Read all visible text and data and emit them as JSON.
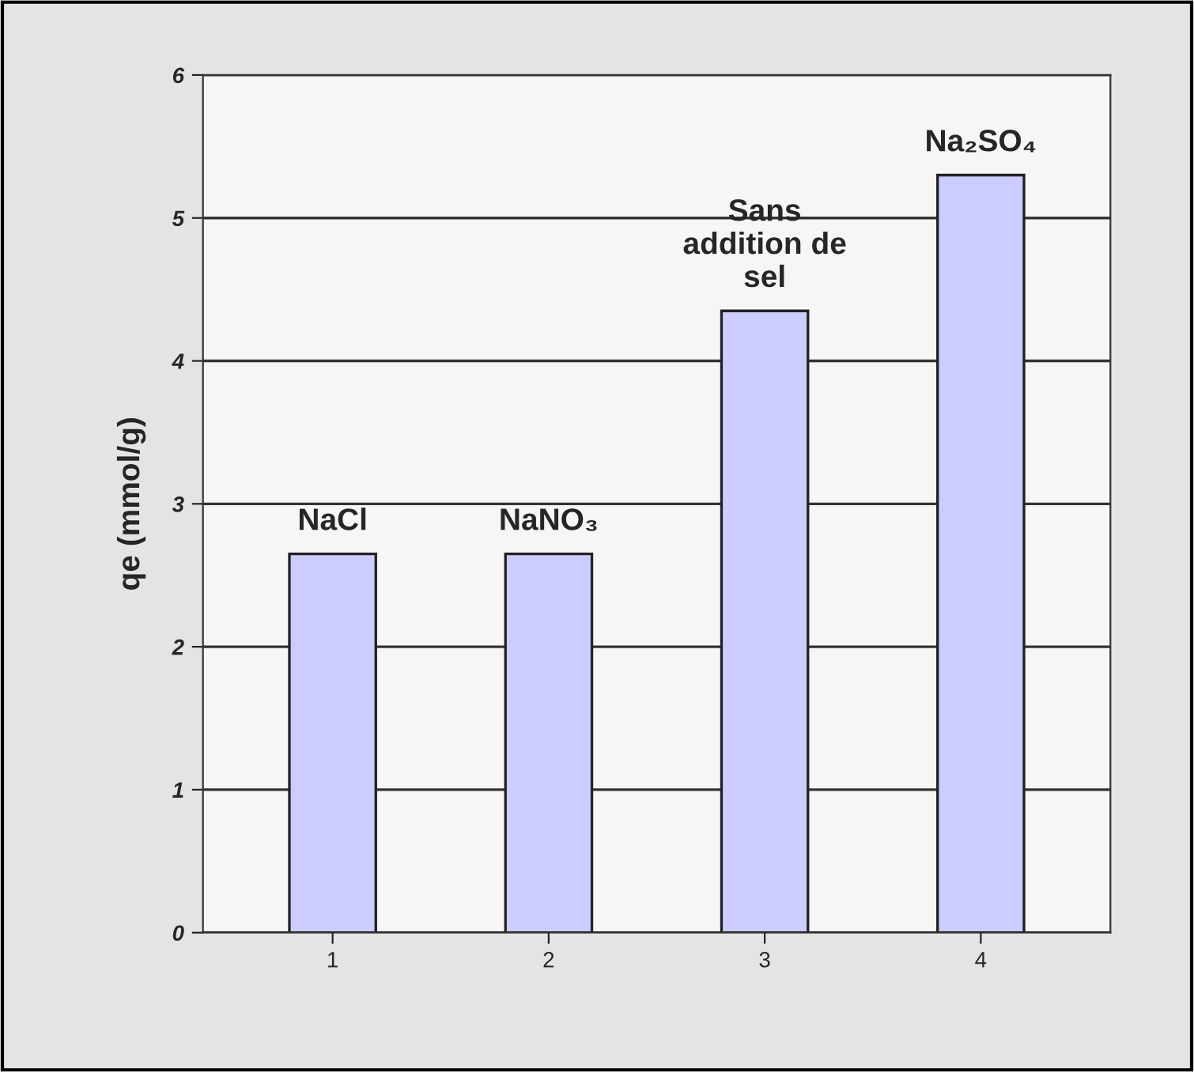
{
  "chart_data": {
    "type": "bar",
    "ylabel": "qe (mmol/g)",
    "categories": [
      "1",
      "2",
      "3",
      "4"
    ],
    "values": [
      2.65,
      2.65,
      4.35,
      5.3
    ],
    "color": "#ccccff",
    "ylim": [
      0,
      6
    ],
    "yticks": [
      0,
      1,
      2,
      3,
      4,
      5,
      6
    ],
    "grid": "y",
    "annotations": [
      {
        "text": "NaCl",
        "x": "1",
        "y": 2.65
      },
      {
        "text": "NaNO₃",
        "x": "2",
        "y": 2.65
      },
      {
        "text": "Sans\naddition de\nsel",
        "x": "3",
        "y": 4.35
      },
      {
        "text": "Na₂SO₄",
        "x": "4",
        "y": 5.3
      }
    ]
  }
}
